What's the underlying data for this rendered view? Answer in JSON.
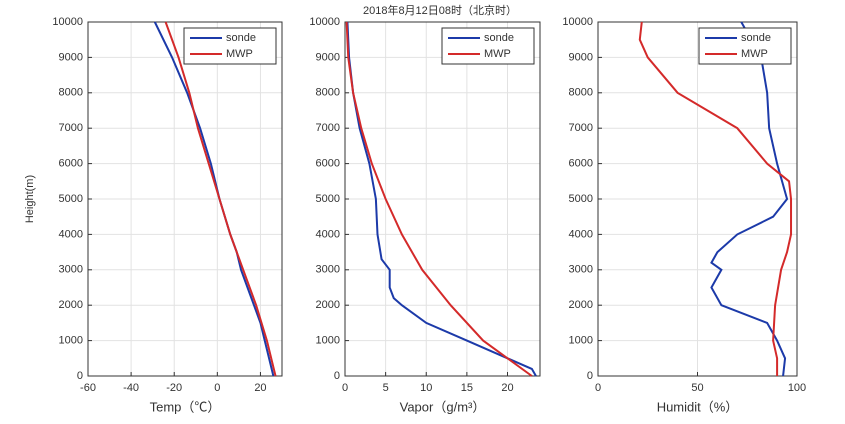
{
  "chart_data": [
    {
      "type": "line",
      "title": "2018年8月12日08时（北京时）",
      "xlabel": "Temp（℃）",
      "ylabel": "Height(m)",
      "xlim": [
        -60,
        30
      ],
      "xticks": [
        -60,
        -40,
        -20,
        0,
        20
      ],
      "ylim": [
        0,
        10000
      ],
      "yticks": [
        0,
        1000,
        2000,
        3000,
        4000,
        5000,
        6000,
        7000,
        8000,
        9000,
        10000
      ],
      "grid": true,
      "legend": "upper right",
      "series": [
        {
          "name": "sonde",
          "color": "#1c3aa9",
          "x": [
            26,
            24,
            22,
            20,
            17,
            14,
            11,
            9,
            6,
            1,
            -3,
            -8,
            -14,
            -21,
            -29
          ],
          "y": [
            0,
            500,
            1000,
            1500,
            2000,
            2500,
            3000,
            3500,
            4000,
            5000,
            6000,
            7000,
            8000,
            9000,
            10000
          ]
        },
        {
          "name": "MWP",
          "color": "#d42a2a",
          "x": [
            27,
            23,
            18,
            12,
            6,
            1,
            -4,
            -9,
            -13,
            -18,
            -24
          ],
          "y": [
            0,
            1000,
            2000,
            3000,
            4000,
            5000,
            6000,
            7000,
            8000,
            9000,
            10000
          ]
        }
      ]
    },
    {
      "type": "line",
      "xlabel": "Vapor（g/m³）",
      "xlim": [
        0,
        24
      ],
      "xticks": [
        0,
        5,
        10,
        15,
        20
      ],
      "ylim": [
        0,
        10000
      ],
      "yticks": [
        0,
        1000,
        2000,
        3000,
        4000,
        5000,
        6000,
        7000,
        8000,
        9000,
        10000
      ],
      "grid": true,
      "legend": "upper right",
      "series": [
        {
          "name": "sonde",
          "color": "#1c3aa9",
          "x": [
            23.5,
            23,
            20,
            15,
            10,
            7,
            6,
            5.5,
            5.5,
            4.5,
            4,
            3.8,
            3,
            1.8,
            1,
            0.5,
            0.3
          ],
          "y": [
            0,
            200,
            500,
            1000,
            1500,
            2000,
            2200,
            2500,
            3000,
            3300,
            4000,
            5000,
            6000,
            7000,
            8000,
            9000,
            10000
          ]
        },
        {
          "name": "MWP",
          "color": "#d42a2a",
          "x": [
            23,
            20,
            17,
            13,
            9.5,
            7,
            5,
            3.3,
            2,
            1,
            0.4,
            0.2
          ],
          "y": [
            0,
            500,
            1000,
            2000,
            3000,
            4000,
            5000,
            6000,
            7000,
            8000,
            9000,
            10000
          ]
        }
      ]
    },
    {
      "type": "line",
      "xlabel": "Humidit（%）",
      "xlim": [
        0,
        100
      ],
      "xticks": [
        0,
        50,
        100
      ],
      "ylim": [
        0,
        10000
      ],
      "yticks": [
        0,
        1000,
        2000,
        3000,
        4000,
        5000,
        6000,
        7000,
        8000,
        9000,
        10000
      ],
      "grid": true,
      "legend": "upper right",
      "series": [
        {
          "name": "sonde",
          "color": "#1c3aa9",
          "x": [
            93,
            94,
            90,
            85,
            62,
            57,
            62,
            57,
            60,
            70,
            88,
            95,
            90,
            86,
            85,
            82,
            72
          ],
          "y": [
            0,
            500,
            1000,
            1500,
            2000,
            2500,
            3000,
            3200,
            3500,
            4000,
            4500,
            5000,
            6000,
            7000,
            8000,
            9000,
            10000
          ]
        },
        {
          "name": "MWP",
          "color": "#d42a2a",
          "x": [
            90,
            90,
            88,
            89,
            92,
            95,
            97,
            97,
            96,
            85,
            70,
            55,
            40,
            25,
            21,
            22
          ],
          "y": [
            0,
            500,
            1000,
            2000,
            3000,
            3500,
            4000,
            5000,
            5500,
            6000,
            7000,
            7500,
            8000,
            9000,
            9500,
            10000
          ]
        }
      ]
    }
  ]
}
